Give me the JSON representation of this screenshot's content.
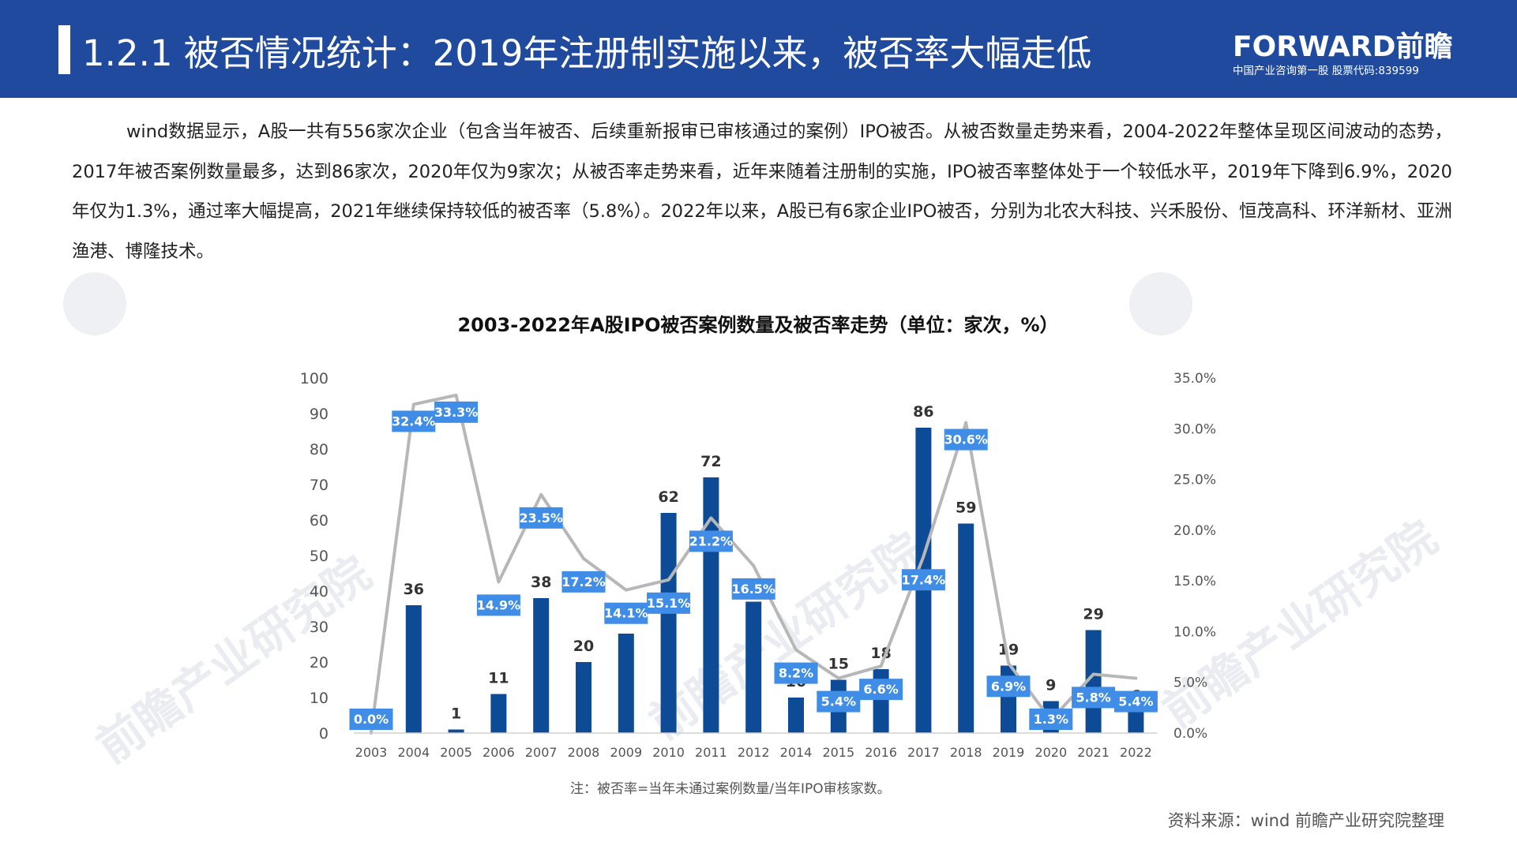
{
  "header": {
    "title": "1.2.1 被否情况统计：2019年注册制实施以来，被否率大幅走低",
    "brand_logo": "FORWARD前瞻",
    "brand_sub": "中国产业咨询第一股 股票代码:839599"
  },
  "intro": "wind数据显示，A股一共有556家次企业（包含当年被否、后续重新报审已审核通过的案例）IPO被否。从被否数量走势来看，2004-2022年整体呈现区间波动的态势，2017年被否案例数量最多，达到86家次，2020年仅为9家次；从被否率走势来看，近年来随着注册制的实施，IPO被否率整体处于一个较低水平，2019年下降到6.9%，2020年仅为1.3%，通过率大幅提高，2021年继续保持较低的被否率（5.8%）。2022年以来，A股已有6家企业IPO被否，分别为北农大科技、兴禾股份、恒茂高科、环洋新材、亚洲渔港、博隆技术。",
  "watermark": "前瞻产业研究院",
  "chart_data": {
    "type": "bar",
    "title": "2003-2022年A股IPO被否案例数量及被否率走势（单位：家次，%）",
    "categories": [
      "2003",
      "2004",
      "2005",
      "2006",
      "2007",
      "2008",
      "2009",
      "2010",
      "2011",
      "2012",
      "2014",
      "2015",
      "2016",
      "2017",
      "2018",
      "2019",
      "2020",
      "2021",
      "2022"
    ],
    "series": [
      {
        "type": "bar",
        "values": [
          0,
          36,
          1,
          11,
          38,
          20,
          28,
          62,
          72,
          37,
          10,
          15,
          18,
          86,
          59,
          19,
          9,
          29,
          6
        ]
      },
      {
        "type": "line",
        "axis": "right",
        "values": [
          0.0,
          32.4,
          33.3,
          14.9,
          23.5,
          17.2,
          14.1,
          15.1,
          21.2,
          16.5,
          8.2,
          5.4,
          6.6,
          17.4,
          30.6,
          6.9,
          1.3,
          5.8,
          5.4
        ]
      }
    ],
    "ylim": [
      0,
      100
    ],
    "yticks": [
      0,
      10,
      20,
      30,
      40,
      50,
      60,
      70,
      80,
      90,
      100
    ],
    "y2lim": [
      0,
      35
    ],
    "y2ticks": [
      "0.0%",
      "5.0%",
      "10.0%",
      "15.0%",
      "20.0%",
      "25.0%",
      "30.0%",
      "35.0%"
    ],
    "colors": {
      "bar": "#0d4b96",
      "line": "#b7b7b7",
      "label_bg": "#3f8de6"
    },
    "grid": false
  },
  "note": "注：被否率=当年未通过案例数量/当年IPO审核家数。",
  "source": "资料来源：wind 前瞻产业研究院整理"
}
